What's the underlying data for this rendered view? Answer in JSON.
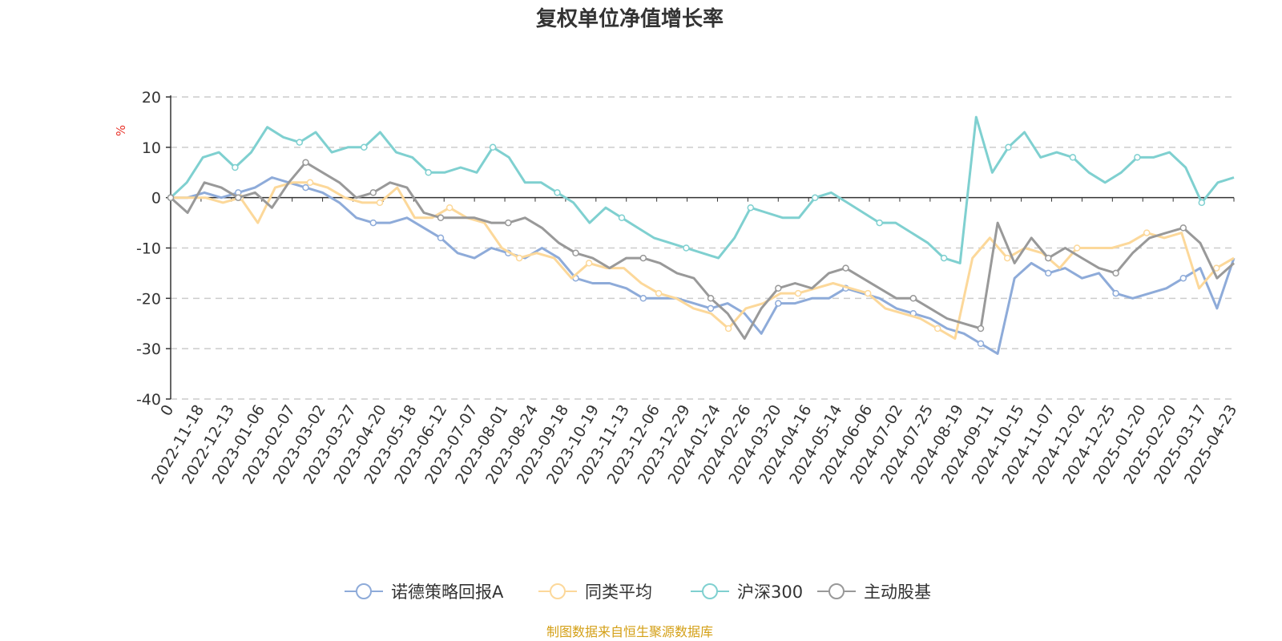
{
  "chart_data": {
    "type": "line",
    "title": "复权单位净值增长率",
    "ylabel": "%",
    "ylim": [
      -40,
      20
    ],
    "yticks": [
      -40,
      -30,
      -20,
      -10,
      0,
      10,
      20
    ],
    "grid": true,
    "legend_position": "bottom",
    "x_tick_labels": [
      "0",
      "2022-11-18",
      "2022-12-13",
      "2023-01-06",
      "2023-02-07",
      "2023-03-02",
      "2023-03-27",
      "2023-04-20",
      "2023-05-18",
      "2023-06-12",
      "2023-07-07",
      "2023-08-01",
      "2023-08-24",
      "2023-09-18",
      "2023-10-19",
      "2023-11-13",
      "2023-12-06",
      "2023-12-29",
      "2024-01-24",
      "2024-02-26",
      "2024-03-20",
      "2024-04-16",
      "2024-05-14",
      "2024-06-06",
      "2024-07-02",
      "2024-07-25",
      "2024-08-19",
      "2024-09-11",
      "2024-10-15",
      "2024-11-07",
      "2024-12-02",
      "2024-12-25",
      "2025-01-20",
      "2025-02-20",
      "2025-03-17",
      "2025-04-23"
    ],
    "series": [
      {
        "name": "诺德策略回报A",
        "color": "#8eabd9",
        "values": [
          0,
          0,
          1,
          0,
          1,
          2,
          4,
          3,
          2,
          1,
          -1,
          -4,
          -5,
          -5,
          -4,
          -6,
          -8,
          -11,
          -12,
          -10,
          -11,
          -12,
          -10,
          -12,
          -16,
          -17,
          -17,
          -18,
          -20,
          -20,
          -20,
          -21,
          -22,
          -21,
          -23,
          -27,
          -21,
          -21,
          -20,
          -20,
          -18,
          -19,
          -20,
          -22,
          -23,
          -24,
          -26,
          -27,
          -29,
          -31,
          -16,
          -13,
          -15,
          -14,
          -16,
          -15,
          -19,
          -20,
          -19,
          -18,
          -16,
          -14,
          -22,
          -12
        ]
      },
      {
        "name": "同类平均",
        "color": "#fcd89a",
        "values": [
          0,
          0,
          0,
          -1,
          0,
          -5,
          2,
          3,
          3,
          2,
          0,
          -1,
          -1,
          2,
          -4,
          -4,
          -2,
          -4,
          -5,
          -10,
          -12,
          -11,
          -12,
          -16,
          -13,
          -14,
          -14,
          -17,
          -19,
          -20,
          -22,
          -23,
          -26,
          -22,
          -21,
          -19,
          -19,
          -18,
          -17,
          -18,
          -19,
          -22,
          -23,
          -24,
          -26,
          -28,
          -12,
          -8,
          -12,
          -10,
          -11,
          -14,
          -10,
          -10,
          -10,
          -9,
          -7,
          -8,
          -7,
          -18,
          -14,
          -12
        ]
      },
      {
        "name": "沪深300",
        "color": "#7fd0d0",
        "values": [
          0,
          3,
          8,
          9,
          6,
          9,
          14,
          12,
          11,
          13,
          9,
          10,
          10,
          13,
          9,
          8,
          5,
          5,
          6,
          5,
          10,
          8,
          3,
          3,
          1,
          -1,
          -5,
          -2,
          -4,
          -6,
          -8,
          -9,
          -10,
          -11,
          -12,
          -8,
          -2,
          -3,
          -4,
          -4,
          0,
          1,
          -1,
          -3,
          -5,
          -5,
          -7,
          -9,
          -12,
          -13,
          16,
          5,
          10,
          13,
          8,
          9,
          8,
          5,
          3,
          5,
          8,
          8,
          9,
          6,
          -1,
          3,
          4
        ]
      },
      {
        "name": "主动股基",
        "color": "#999999",
        "values": [
          0,
          -3,
          3,
          2,
          0,
          1,
          -2,
          3,
          7,
          5,
          3,
          0,
          1,
          3,
          2,
          -3,
          -4,
          -4,
          -4,
          -5,
          -5,
          -4,
          -6,
          -9,
          -11,
          -12,
          -14,
          -12,
          -12,
          -13,
          -15,
          -16,
          -20,
          -23,
          -28,
          -22,
          -18,
          -17,
          -18,
          -15,
          -14,
          -16,
          -18,
          -20,
          -20,
          -22,
          -24,
          -25,
          -26,
          -5,
          -13,
          -8,
          -12,
          -10,
          -12,
          -14,
          -15,
          -11,
          -8,
          -7,
          -6,
          -9,
          -16,
          -13
        ]
      }
    ]
  },
  "source_note": "制图数据来自恒生聚源数据库"
}
